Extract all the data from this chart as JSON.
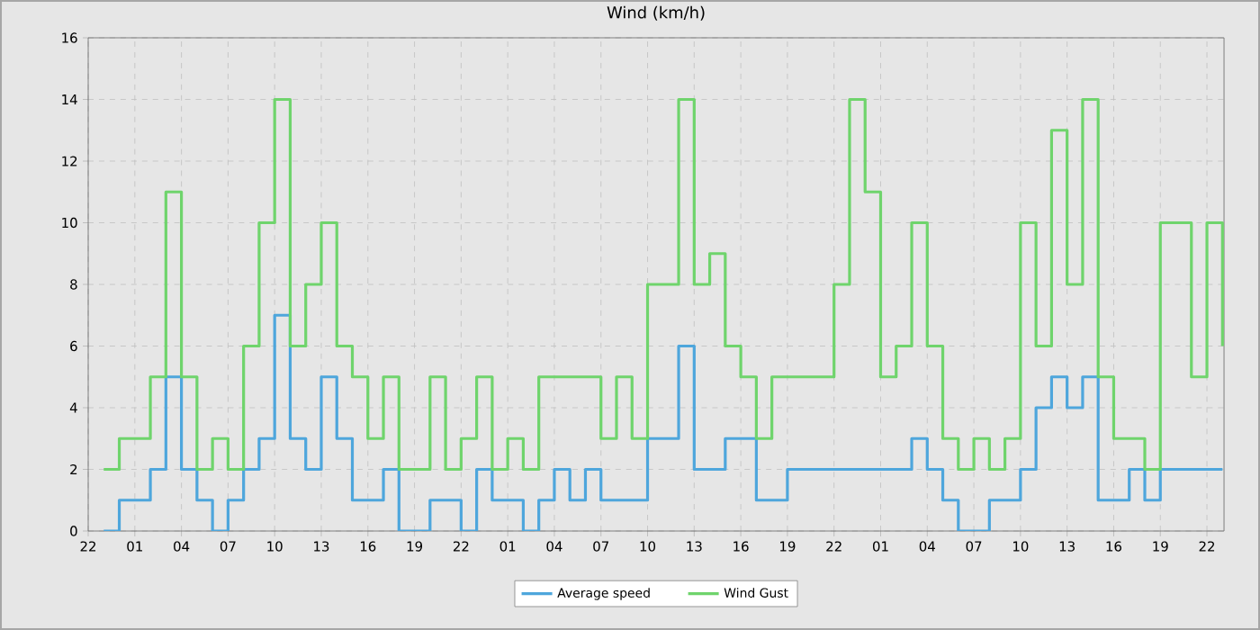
{
  "chart_data": {
    "type": "step",
    "title": "Wind (km/h)",
    "categories": [
      "22",
      null,
      null,
      "01",
      null,
      null,
      "04",
      null,
      null,
      "07",
      null,
      null,
      "10",
      null,
      null,
      "13",
      null,
      null,
      "16",
      null,
      null,
      "19",
      null,
      null,
      "22",
      null,
      null,
      "01",
      null,
      null,
      "04",
      null,
      null,
      "07",
      null,
      null,
      "10",
      null,
      null,
      "13",
      null,
      null,
      "16",
      null,
      null,
      "19",
      null,
      null,
      "22",
      null,
      null,
      "01",
      null,
      null,
      "04",
      null,
      null,
      "07",
      null,
      null,
      "10",
      null,
      null,
      "13",
      null,
      null,
      "16",
      null,
      null,
      "19",
      null,
      null,
      "22",
      null
    ],
    "series": [
      {
        "name": "Average speed",
        "color": "#4ea6dc",
        "values": [
          null,
          0,
          1,
          1,
          2,
          5,
          2,
          1,
          0,
          1,
          2,
          3,
          7,
          3,
          2,
          5,
          3,
          1,
          1,
          2,
          0,
          0,
          1,
          1,
          0,
          2,
          1,
          1,
          0,
          1,
          2,
          1,
          2,
          1,
          1,
          1,
          3,
          3,
          6,
          2,
          2,
          3,
          3,
          1,
          1,
          2,
          2,
          2,
          2,
          2,
          2,
          2,
          2,
          3,
          2,
          1,
          0,
          0,
          1,
          1,
          2,
          4,
          5,
          4,
          5,
          1,
          1,
          2,
          1,
          2,
          2,
          2,
          2,
          2
        ]
      },
      {
        "name": "Wind Gust",
        "color": "#6fd46c",
        "values": [
          null,
          2,
          3,
          3,
          5,
          11,
          5,
          2,
          3,
          2,
          6,
          10,
          14,
          6,
          8,
          10,
          6,
          5,
          3,
          5,
          2,
          2,
          5,
          2,
          3,
          5,
          2,
          3,
          2,
          5,
          5,
          5,
          5,
          3,
          5,
          3,
          8,
          8,
          14,
          8,
          9,
          6,
          5,
          3,
          5,
          5,
          5,
          5,
          8,
          14,
          11,
          5,
          6,
          10,
          6,
          3,
          2,
          3,
          2,
          3,
          10,
          6,
          13,
          8,
          14,
          5,
          3,
          3,
          2,
          10,
          10,
          5,
          10,
          6
        ]
      }
    ],
    "ylim": [
      0,
      16
    ],
    "yticks": [
      0,
      2,
      4,
      6,
      8,
      10,
      12,
      14,
      16
    ],
    "grid": true,
    "legend": "bottom",
    "marker": "none",
    "line_style": "solid"
  }
}
